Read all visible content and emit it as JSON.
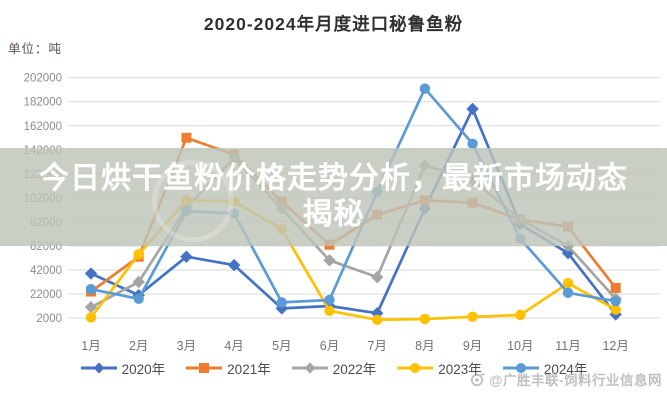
{
  "title": "2020-2024年月度进口秘鲁鱼粉",
  "unit_label": "单位：吨",
  "overlay": {
    "line1": "今日烘干鱼粉价格走势分析，最新市场动态",
    "line2": "揭秘"
  },
  "watermark": {
    "text": "@广胜丰联-饲料行业信息网"
  },
  "chart_data": {
    "type": "line",
    "title": "2020-2024年月度进口秘鲁鱼粉",
    "ylabel": "吨",
    "categories": [
      "1月",
      "2月",
      "3月",
      "4月",
      "5月",
      "6月",
      "7月",
      "8月",
      "9月",
      "10月",
      "11月",
      "12月"
    ],
    "yticks": [
      2000,
      22000,
      42000,
      62000,
      82000,
      102000,
      122000,
      142000,
      162000,
      182000,
      202000
    ],
    "ylim": [
      0,
      202000
    ],
    "grid": true,
    "legend_position": "bottom",
    "series": [
      {
        "name": "2020年",
        "color": "#4472c4",
        "marker": "diamond",
        "values": [
          39000,
          21000,
          53000,
          46000,
          10000,
          12000,
          6000,
          93000,
          176000,
          80000,
          56000,
          5000
        ]
      },
      {
        "name": "2021年",
        "color": "#ed7d31",
        "marker": "square",
        "values": [
          24000,
          53000,
          152000,
          138000,
          99000,
          63000,
          88000,
          100000,
          98000,
          84000,
          78000,
          27000
        ]
      },
      {
        "name": "2022年",
        "color": "#a5a5a5",
        "marker": "diamond",
        "values": [
          11000,
          32000,
          94000,
          135000,
          93000,
          50000,
          36000,
          129000,
          117000,
          84000,
          62000,
          18000
        ]
      },
      {
        "name": "2023年",
        "color": "#ffc000",
        "marker": "circle",
        "values": [
          2500,
          55000,
          100000,
          99000,
          76000,
          8000,
          500,
          1200,
          3000,
          4500,
          31000,
          9000
        ]
      },
      {
        "name": "2024年",
        "color": "#5b9bd5",
        "marker": "circle",
        "values": [
          26000,
          18000,
          91000,
          89000,
          15000,
          17000,
          107000,
          193000,
          147000,
          68000,
          23000,
          16000
        ]
      }
    ],
    "axis_text_color": "#8c8c8c",
    "gridline_color": "#d9d9d9"
  }
}
